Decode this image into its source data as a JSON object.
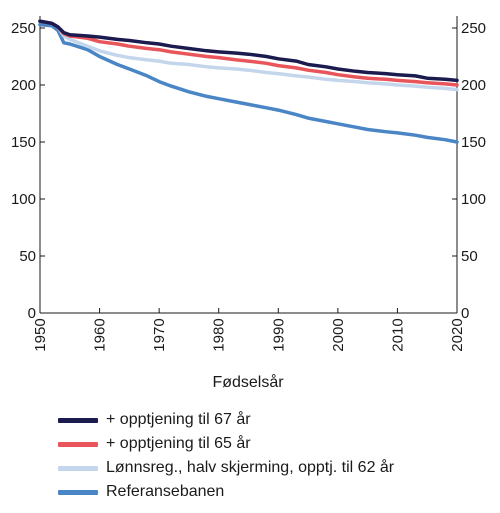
{
  "chart_data": {
    "type": "line",
    "title": "",
    "xlabel": "Fødselsår",
    "ylabel": "",
    "xlim": [
      1950,
      2020
    ],
    "ylim": [
      0,
      250
    ],
    "xticks": [
      1950,
      1960,
      1970,
      1980,
      1990,
      2000,
      2010,
      2020
    ],
    "yticks": [
      0,
      50,
      100,
      150,
      200,
      250
    ],
    "grid": false,
    "legend_position": "bottom",
    "x": [
      1950,
      1952,
      1953,
      1954,
      1955,
      1958,
      1960,
      1963,
      1965,
      1968,
      1970,
      1972,
      1975,
      1978,
      1980,
      1983,
      1985,
      1988,
      1990,
      1993,
      1995,
      1998,
      2000,
      2003,
      2005,
      2008,
      2010,
      2013,
      2015,
      2018,
      2020
    ],
    "series": [
      {
        "name": "+ opptjening til 67 år",
        "color": "#1b1b4f",
        "values": [
          256,
          254,
          251,
          246,
          244,
          243,
          242,
          240,
          239,
          237,
          236,
          234,
          232,
          230,
          229,
          228,
          227,
          225,
          223,
          221,
          218,
          216,
          214,
          212,
          211,
          210,
          209,
          208,
          206,
          205,
          204
        ]
      },
      {
        "name": "+ opptjening til 65 år",
        "color": "#e8555a",
        "values": [
          256,
          254,
          251,
          245,
          243,
          241,
          238,
          236,
          234,
          232,
          231,
          229,
          227,
          225,
          224,
          222,
          221,
          219,
          217,
          215,
          213,
          211,
          209,
          207,
          206,
          205,
          204,
          203,
          202,
          201,
          200
        ]
      },
      {
        "name": "Lønnsreg., halv skjerming, opptj. til 62 år",
        "color": "#c4d6ec",
        "values": [
          256,
          254,
          251,
          243,
          240,
          234,
          230,
          226,
          224,
          222,
          221,
          219,
          218,
          216,
          215,
          214,
          213,
          211,
          210,
          208,
          207,
          205,
          204,
          203,
          202,
          201,
          200,
          199,
          198,
          197,
          196
        ]
      },
      {
        "name": "Referansebanen",
        "color": "#4a86c5",
        "values": [
          253,
          252,
          248,
          237,
          236,
          231,
          225,
          218,
          214,
          208,
          203,
          199,
          194,
          190,
          188,
          185,
          183,
          180,
          178,
          174,
          171,
          168,
          166,
          163,
          161,
          159,
          158,
          156,
          154,
          152,
          150
        ]
      }
    ]
  }
}
